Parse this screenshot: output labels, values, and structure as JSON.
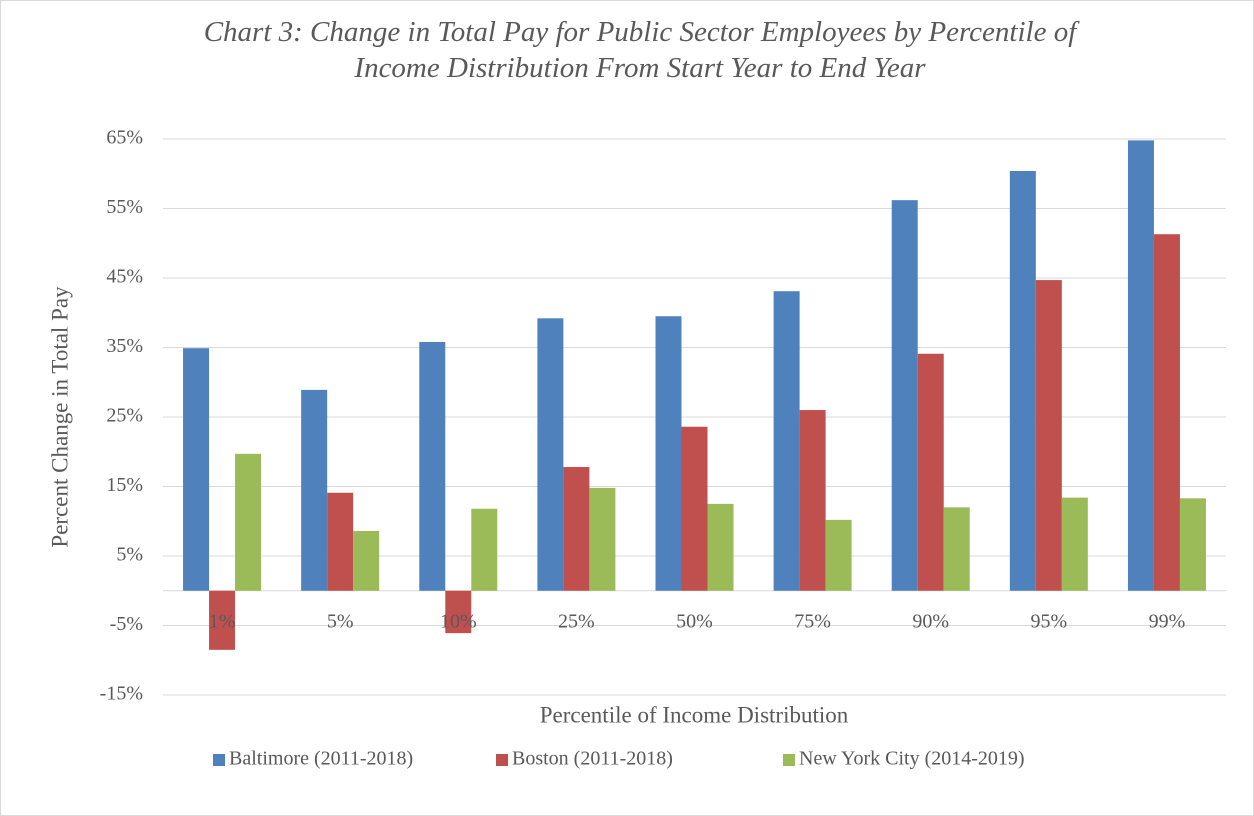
{
  "chart_data": {
    "type": "bar",
    "title": "Chart 3: Change in Total Pay for Public Sector Employees by Percentile of Income Distribution From Start Year to End Year",
    "x_label": "Percentile of Income Distribution",
    "y_label": "Percent Change in Total Pay",
    "categories": [
      "1%",
      "5%",
      "10%",
      "25%",
      "50%",
      "75%",
      "90%",
      "95%",
      "99%"
    ],
    "series": [
      {
        "name": "Baltimore (2011-2018)",
        "color": "#4f81bd",
        "values": [
          34.9,
          28.9,
          35.8,
          39.2,
          39.5,
          43.1,
          56.2,
          60.4,
          64.8
        ]
      },
      {
        "name": "Boston (2011-2018)",
        "color": "#c0504d",
        "values": [
          -8.5,
          14.1,
          -6.1,
          17.8,
          23.6,
          26.0,
          34.1,
          44.7,
          51.3
        ]
      },
      {
        "name": "New York City (2014-2019)",
        "color": "#9bbb59",
        "values": [
          19.7,
          8.6,
          11.8,
          14.8,
          12.5,
          10.2,
          12.0,
          13.4,
          13.3
        ]
      }
    ],
    "ylim": [
      -15,
      65
    ],
    "yticks": [
      {
        "value": -15,
        "label": "-15%"
      },
      {
        "value": -5,
        "label": "-5%"
      },
      {
        "value": 5,
        "label": "5%"
      },
      {
        "value": 15,
        "label": "15%"
      },
      {
        "value": 25,
        "label": "25%"
      },
      {
        "value": 35,
        "label": "35%"
      },
      {
        "value": 45,
        "label": "45%"
      },
      {
        "value": 55,
        "label": "55%"
      },
      {
        "value": 65,
        "label": "65%"
      }
    ],
    "grid": true,
    "legend": "bottom"
  }
}
